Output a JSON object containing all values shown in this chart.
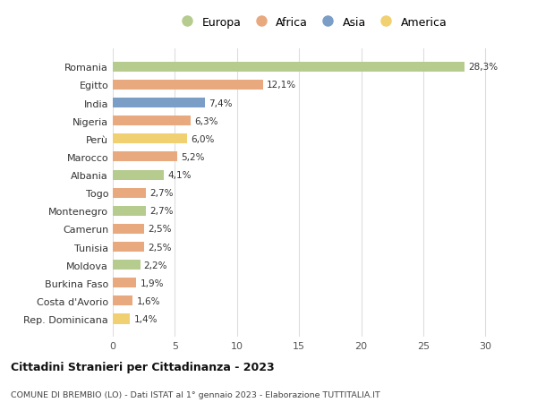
{
  "countries": [
    "Romania",
    "Egitto",
    "India",
    "Nigeria",
    "Perù",
    "Marocco",
    "Albania",
    "Togo",
    "Montenegro",
    "Camerun",
    "Tunisia",
    "Moldova",
    "Burkina Faso",
    "Costa d'Avorio",
    "Rep. Dominicana"
  ],
  "values": [
    28.3,
    12.1,
    7.4,
    6.3,
    6.0,
    5.2,
    4.1,
    2.7,
    2.7,
    2.5,
    2.5,
    2.2,
    1.9,
    1.6,
    1.4
  ],
  "labels": [
    "28,3%",
    "12,1%",
    "7,4%",
    "6,3%",
    "6,0%",
    "5,2%",
    "4,1%",
    "2,7%",
    "2,7%",
    "2,5%",
    "2,5%",
    "2,2%",
    "1,9%",
    "1,6%",
    "1,4%"
  ],
  "continents": [
    "Europa",
    "Africa",
    "Asia",
    "Africa",
    "America",
    "Africa",
    "Europa",
    "Africa",
    "Europa",
    "Africa",
    "Africa",
    "Europa",
    "Africa",
    "Africa",
    "America"
  ],
  "continent_colors": {
    "Europa": "#b5cc8e",
    "Africa": "#e8a97e",
    "Asia": "#7b9ec7",
    "America": "#f0d070"
  },
  "legend_order": [
    "Europa",
    "Africa",
    "Asia",
    "America"
  ],
  "title": "Cittadini Stranieri per Cittadinanza - 2023",
  "subtitle": "COMUNE DI BREMBIO (LO) - Dati ISTAT al 1° gennaio 2023 - Elaborazione TUTTITALIA.IT",
  "xlim": [
    0,
    32
  ],
  "xticks": [
    0,
    5,
    10,
    15,
    20,
    25,
    30
  ],
  "bg_color": "#ffffff",
  "grid_color": "#dddddd",
  "bar_height": 0.55
}
